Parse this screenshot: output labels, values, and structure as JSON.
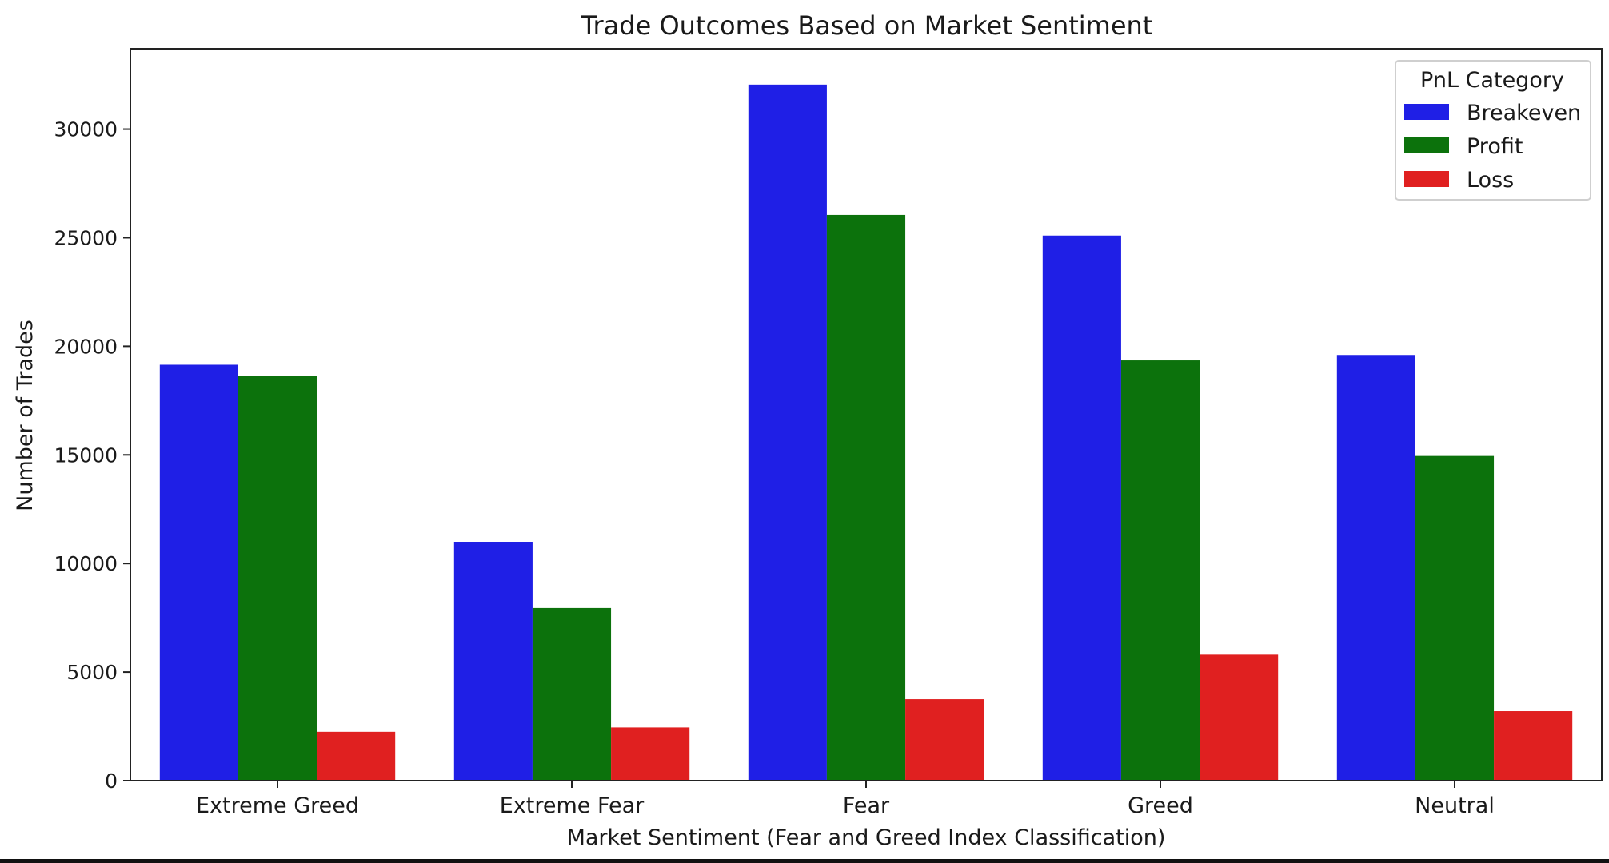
{
  "chart_data": {
    "type": "bar",
    "title": "Trade Outcomes Based on Market Sentiment",
    "xlabel": "Market Sentiment (Fear and Greed Index Classification)",
    "ylabel": "Number of Trades",
    "categories": [
      "Extreme Greed",
      "Extreme Fear",
      "Fear",
      "Greed",
      "Neutral"
    ],
    "series": [
      {
        "name": "Breakeven",
        "color": "#1f1fe6",
        "values": [
          19150,
          11000,
          32050,
          25100,
          19600
        ]
      },
      {
        "name": "Profit",
        "color": "#0c720c",
        "values": [
          18650,
          7950,
          26050,
          19350,
          14950
        ]
      },
      {
        "name": "Loss",
        "color": "#e02020",
        "values": [
          2250,
          2450,
          3750,
          5800,
          3200
        ]
      }
    ],
    "ylim": [
      0,
      33700
    ],
    "yticks": [
      0,
      5000,
      10000,
      15000,
      20000,
      25000,
      30000
    ],
    "grid": false,
    "legend": {
      "title": "PnL Category",
      "placement": "top-right"
    }
  }
}
